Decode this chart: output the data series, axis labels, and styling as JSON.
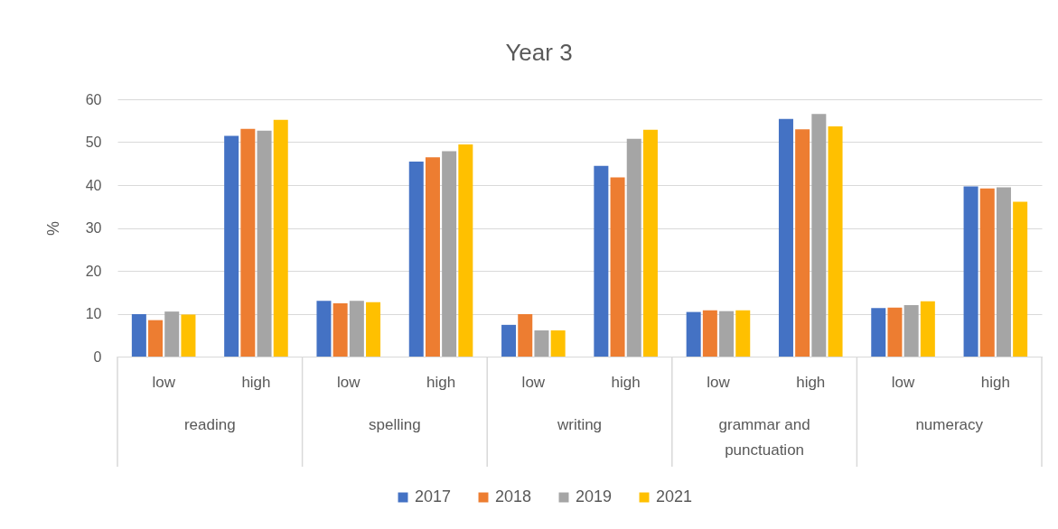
{
  "chart_data": {
    "type": "bar",
    "title": "Year 3",
    "ylabel": "%",
    "categories": [
      "low",
      "high",
      "low",
      "high",
      "low",
      "high",
      "low",
      "high",
      "low",
      "high"
    ],
    "annotations": [
      "reading",
      "spelling",
      "writing",
      "grammar and punctuation",
      "numeracy"
    ],
    "series": [
      {
        "name": "2017",
        "color": "#4472c4",
        "values": [
          9.9,
          51.5,
          13.0,
          45.5,
          7.4,
          44.5,
          10.4,
          55.4,
          11.3,
          39.7
        ]
      },
      {
        "name": "2018",
        "color": "#ed7d31",
        "values": [
          8.5,
          53.1,
          12.4,
          46.5,
          9.9,
          41.8,
          10.8,
          53.0,
          11.4,
          39.2
        ]
      },
      {
        "name": "2019",
        "color": "#a5a5a5",
        "values": [
          10.5,
          52.7,
          13.0,
          47.9,
          6.1,
          50.8,
          10.6,
          56.6,
          12.0,
          39.5
        ]
      },
      {
        "name": "2021",
        "color": "#ffc000",
        "values": [
          9.8,
          55.2,
          12.7,
          49.5,
          6.1,
          52.9,
          10.8,
          53.7,
          12.9,
          36.1
        ]
      }
    ],
    "ylim": [
      0,
      60
    ],
    "yticks": [
      0,
      10,
      20,
      30,
      40,
      50,
      60
    ],
    "grid": "y",
    "legend": "bottom"
  }
}
